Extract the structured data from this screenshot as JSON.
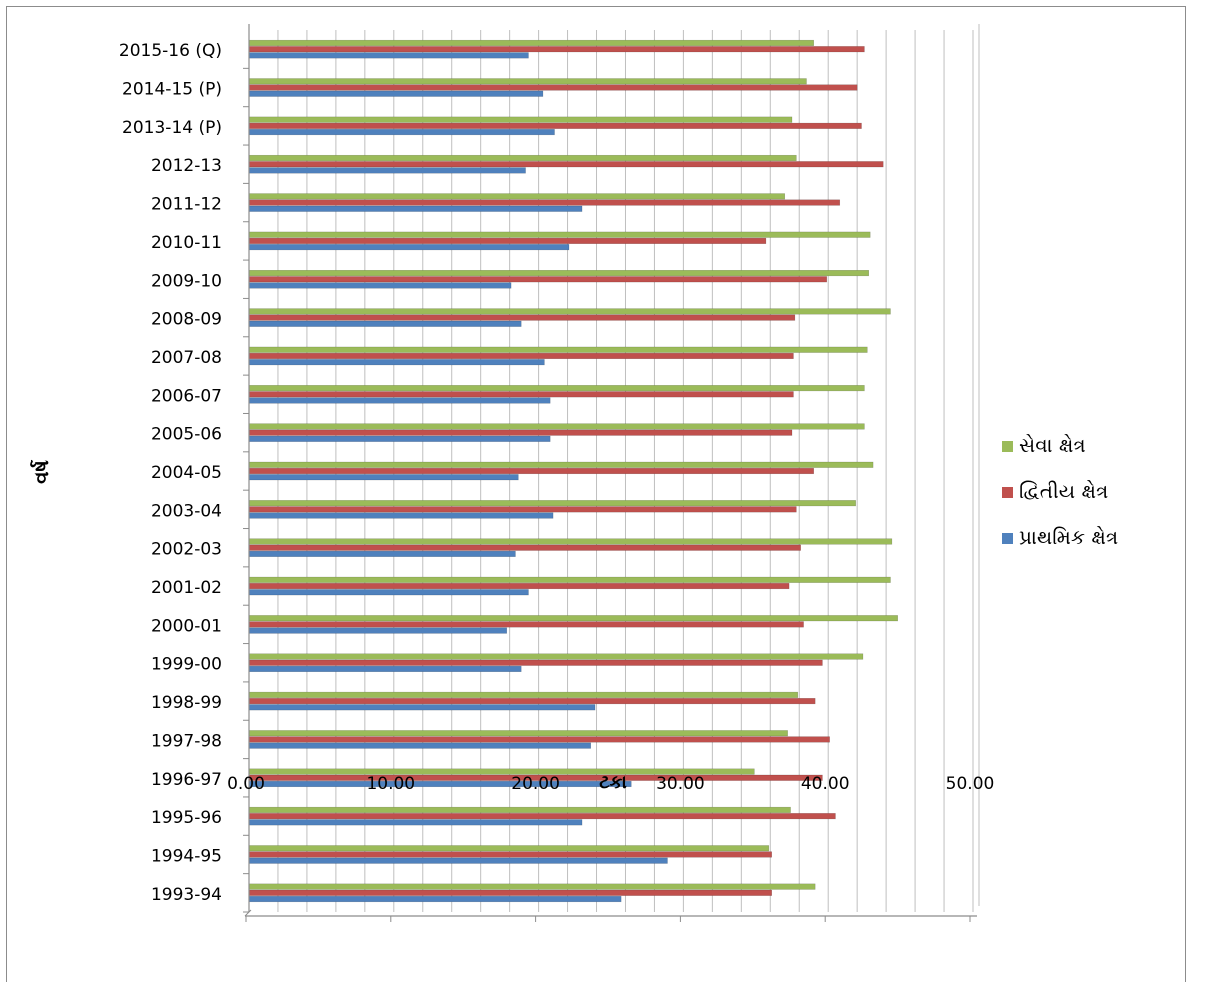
{
  "chart_data": {
    "type": "bar",
    "orientation": "horizontal",
    "xlabel": "ટકા",
    "ylabel": "વર્ષ",
    "xlim": [
      0,
      50
    ],
    "xticks": [
      "0.00",
      "10.00",
      "20.00",
      "30.00",
      "40.00",
      "50.00"
    ],
    "grid": true,
    "legend_position": "right",
    "categories": [
      "1993-94",
      "1994-95",
      "1995-96",
      "1996-97",
      "1997-98",
      "1998-99",
      "1999-00",
      "2000-01",
      "2001-02",
      "2002-03",
      "2003-04",
      "2004-05",
      "2005-06",
      "2006-07",
      "2007-08",
      "2008-09",
      "2009-10",
      "2010-11",
      "2011-12",
      "2012-13",
      "2013-14 (P)",
      "2014-15 (P)",
      "2015-16 (Q)"
    ],
    "series": [
      {
        "name": "સેવા ક્ષેત્ર",
        "color": "#9bbb59",
        "values": [
          39.1,
          35.9,
          37.4,
          34.9,
          37.2,
          37.9,
          42.4,
          44.8,
          44.3,
          44.4,
          41.9,
          43.1,
          42.5,
          42.5,
          42.7,
          44.3,
          42.8,
          42.9,
          37.0,
          37.8,
          37.5,
          38.5,
          39.0
        ]
      },
      {
        "name": "દ્વિતીય ક્ષેત્ર",
        "color": "#c0504d",
        "values": [
          36.1,
          36.1,
          40.5,
          39.6,
          40.1,
          39.1,
          39.6,
          38.3,
          37.3,
          38.1,
          37.8,
          39.0,
          37.5,
          37.6,
          37.6,
          37.7,
          39.9,
          35.7,
          40.8,
          43.8,
          42.3,
          42.0,
          42.5
        ]
      },
      {
        "name": "પ્રાથમિક ક્ષેત્ર",
        "color": "#4f81bd",
        "values": [
          25.7,
          28.9,
          23.0,
          26.4,
          23.6,
          23.9,
          18.8,
          17.8,
          19.3,
          18.4,
          21.0,
          18.6,
          20.8,
          20.8,
          20.4,
          18.8,
          18.1,
          22.1,
          23.0,
          19.1,
          21.1,
          20.3,
          19.3
        ]
      }
    ]
  }
}
